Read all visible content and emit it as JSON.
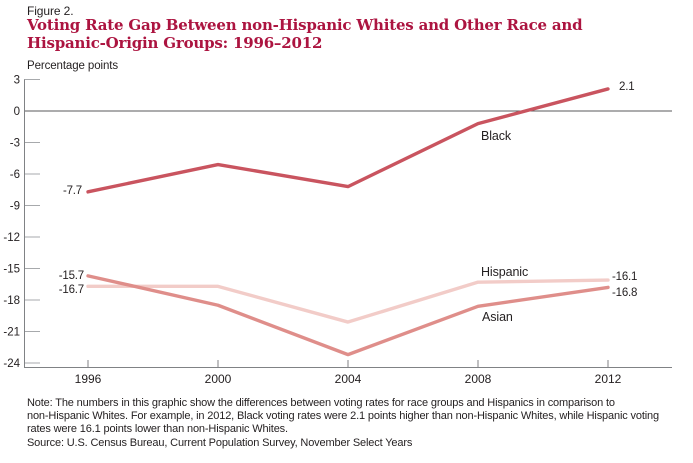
{
  "header": {
    "figure_label": "Figure 2.",
    "title_lines": [
      "Voting Rate Gap Between non-Hispanic Whites and Other Race and",
      "Hispanic-Origin Groups: 1996–2012"
    ]
  },
  "note_lines": [
    "Note: The numbers in this graphic show the differences between voting rates for race groups and Hispanics in comparison to",
    "non-Hispanic Whites. For example, in 2012, Black voting rates were 2.1 points higher than non-Hispanic Whites, while Hispanic voting",
    "rates were 16.1 points lower than non-Hispanic Whites."
  ],
  "source": "Source: U.S. Census Bureau, Current Population Survey, November Select Years",
  "colors": {
    "title": "#ac1440",
    "text": "#231f20",
    "axis": "#808285",
    "tick": "#a7a9ac",
    "zero_line": "#58595b",
    "series_black": "#c9545f",
    "series_hispanic": "#f2ccc8",
    "series_asian": "#df8e8a"
  },
  "chart_data": {
    "type": "line",
    "title": "Voting Rate Gap Between non-Hispanic Whites and Other Race and Hispanic-Origin Groups: 1996–2012",
    "ylabel": "Percentage points",
    "xlabel": "",
    "x": [
      1996,
      2000,
      2004,
      2008,
      2012
    ],
    "x_tick_labels": [
      "1996",
      "2000",
      "2004",
      "2008",
      "2012"
    ],
    "y_ticks": [
      3,
      0,
      -3,
      -6,
      -9,
      -12,
      -15,
      -18,
      -21,
      -24
    ],
    "ylim": [
      -24,
      3
    ],
    "grid": false,
    "zero_reference_line": true,
    "legend_position": "inline-labels",
    "series": [
      {
        "name": "Black",
        "color": "#c9545f",
        "values": [
          -7.7,
          -5.1,
          -7.2,
          -1.2,
          2.1
        ],
        "start_label": "-7.7",
        "end_label": "2.1"
      },
      {
        "name": "Hispanic",
        "color": "#f2ccc8",
        "values": [
          -16.7,
          -16.7,
          -20.1,
          -16.3,
          -16.1
        ],
        "start_label": "-16.7",
        "end_label": "-16.1"
      },
      {
        "name": "Asian",
        "color": "#df8e8a",
        "values": [
          -15.7,
          -18.5,
          -23.2,
          -18.6,
          -16.8
        ],
        "start_label": "-15.7",
        "end_label": "-16.8"
      }
    ]
  }
}
